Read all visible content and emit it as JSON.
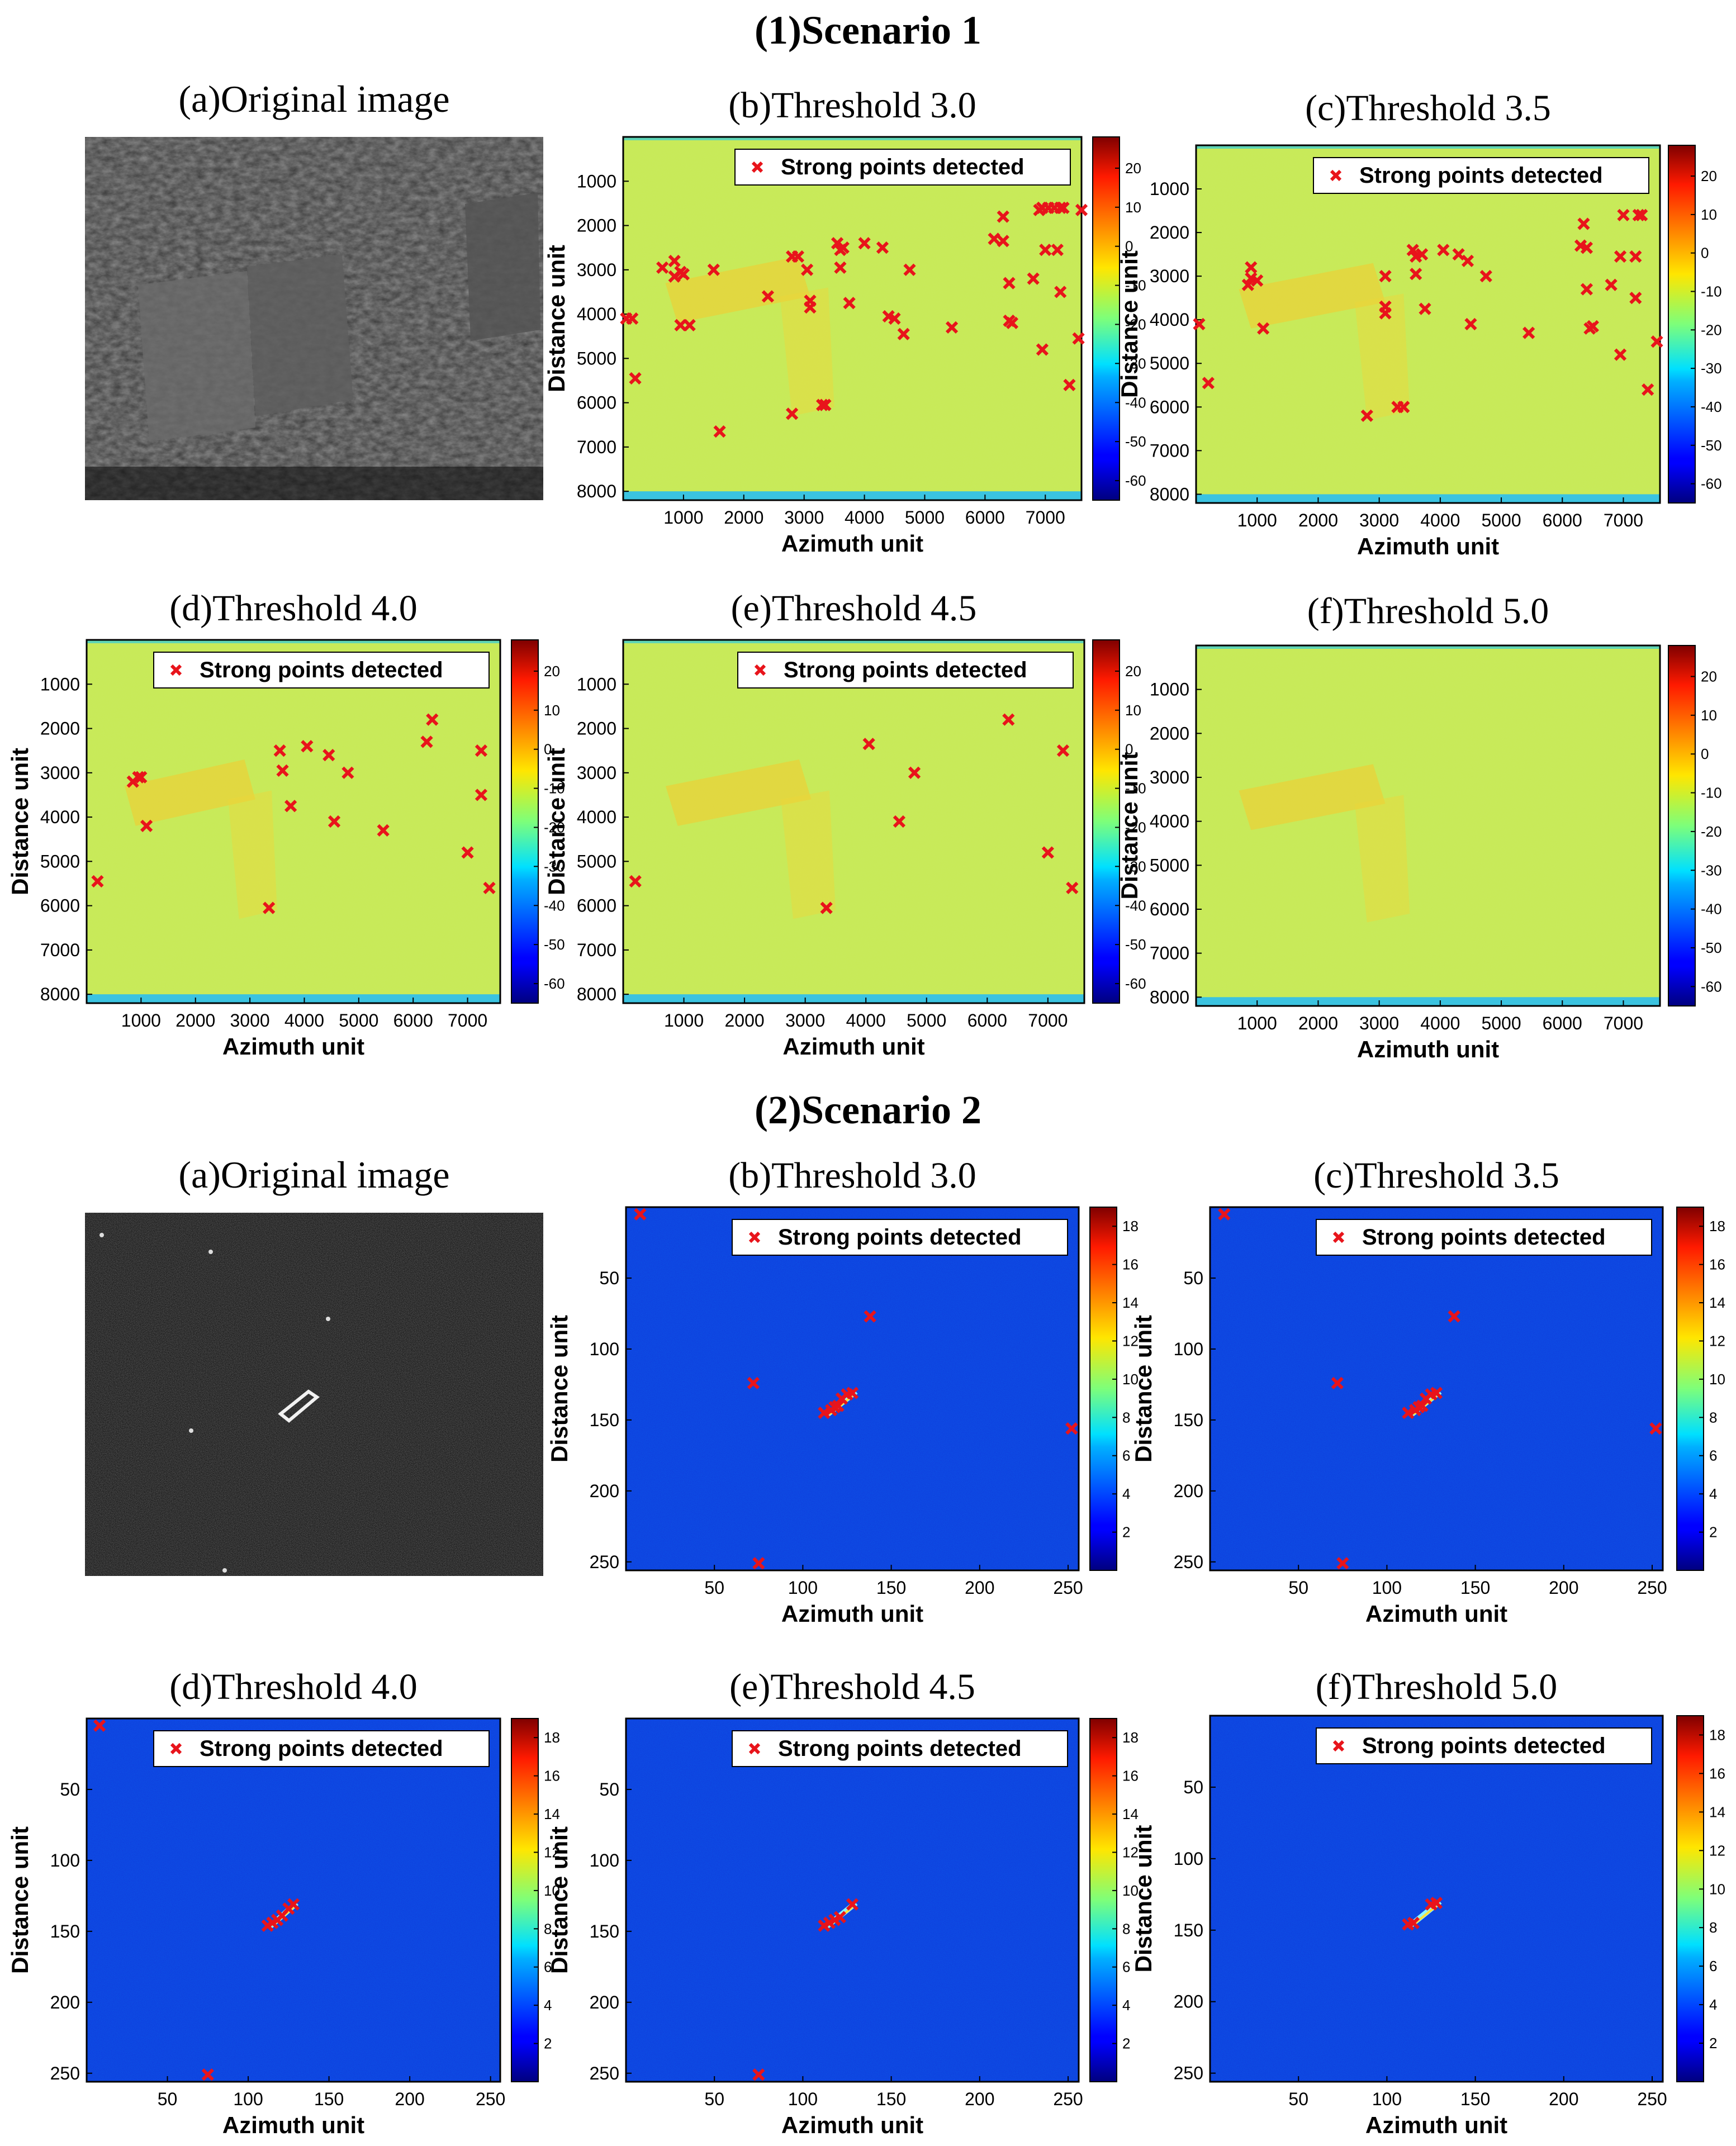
{
  "figure": {
    "scenario1_title": "(1)Scenario 1",
    "scenario2_title": "(2)Scenario 2",
    "xlabel": "Azimuth unit",
    "ylabel": "Distance unit",
    "legend_label": "Strong points detected"
  },
  "chart_data": [
    {
      "type": "heatmap-scatter",
      "scenario": 1,
      "panel": "a",
      "title": "(a)Original image",
      "image_kind": "photo",
      "description_none": ""
    },
    {
      "type": "heatmap-scatter",
      "scenario": 1,
      "panel": "b",
      "title": "(b)Threshold 3.0",
      "xlabel": "Azimuth unit",
      "ylabel": "Distance unit",
      "xlim": [
        0,
        7600
      ],
      "ylim": [
        8200,
        0
      ],
      "xticks": [
        1000,
        2000,
        3000,
        4000,
        5000,
        6000,
        7000
      ],
      "yticks": [
        1000,
        2000,
        3000,
        4000,
        5000,
        6000,
        7000,
        8000
      ],
      "colorbar": {
        "min": -65,
        "max": 28,
        "ticks": [
          20,
          10,
          0,
          -10,
          -20,
          -30,
          -40,
          -50,
          -60
        ],
        "palette": "jet"
      },
      "background": "scene1",
      "legend": "Strong points detected",
      "points": [
        [
          50,
          4100
        ],
        [
          150,
          4100
        ],
        [
          200,
          5450
        ],
        [
          650,
          2950
        ],
        [
          850,
          2800
        ],
        [
          850,
          3150
        ],
        [
          950,
          3050
        ],
        [
          1000,
          3100
        ],
        [
          950,
          4250
        ],
        [
          1100,
          4250
        ],
        [
          1500,
          3000
        ],
        [
          1600,
          6650
        ],
        [
          2400,
          3600
        ],
        [
          2800,
          2700
        ],
        [
          2900,
          2700
        ],
        [
          2800,
          6250
        ],
        [
          3050,
          3000
        ],
        [
          3100,
          3700
        ],
        [
          3100,
          3850
        ],
        [
          3300,
          6050
        ],
        [
          3350,
          6050
        ],
        [
          3550,
          2400
        ],
        [
          3600,
          2550
        ],
        [
          3650,
          2500
        ],
        [
          3600,
          2950
        ],
        [
          3750,
          3750
        ],
        [
          4000,
          2400
        ],
        [
          4300,
          2500
        ],
        [
          4400,
          4050
        ],
        [
          4500,
          4100
        ],
        [
          4650,
          4450
        ],
        [
          4750,
          3000
        ],
        [
          5450,
          4300
        ],
        [
          6150,
          2300
        ],
        [
          6300,
          2350
        ],
        [
          6300,
          1800
        ],
        [
          6400,
          3300
        ],
        [
          6400,
          4150
        ],
        [
          6450,
          4200
        ],
        [
          6800,
          3200
        ],
        [
          6900,
          1650
        ],
        [
          6950,
          1600
        ],
        [
          7000,
          2550
        ],
        [
          6950,
          4800
        ],
        [
          7050,
          1600
        ],
        [
          7150,
          1600
        ],
        [
          7200,
          2550
        ],
        [
          7250,
          1600
        ],
        [
          7250,
          3500
        ],
        [
          7300,
          1600
        ],
        [
          7400,
          5600
        ],
        [
          7550,
          4550
        ],
        [
          7600,
          1650
        ]
      ]
    },
    {
      "type": "heatmap-scatter",
      "scenario": 1,
      "panel": "c",
      "title": "(c)Threshold 3.5",
      "xlabel": "Azimuth unit",
      "ylabel": "Distance unit",
      "xlim": [
        0,
        7600
      ],
      "ylim": [
        8200,
        0
      ],
      "xticks": [
        1000,
        2000,
        3000,
        4000,
        5000,
        6000,
        7000
      ],
      "yticks": [
        1000,
        2000,
        3000,
        4000,
        5000,
        6000,
        7000,
        8000
      ],
      "colorbar": {
        "min": -65,
        "max": 28,
        "ticks": [
          20,
          10,
          0,
          -10,
          -20,
          -30,
          -40,
          -50,
          -60
        ],
        "palette": "jet"
      },
      "background": "scene1",
      "legend": "Strong points detected",
      "points": [
        [
          50,
          4100
        ],
        [
          200,
          5450
        ],
        [
          850,
          3200
        ],
        [
          900,
          2800
        ],
        [
          900,
          3050
        ],
        [
          1000,
          3100
        ],
        [
          1100,
          4200
        ],
        [
          2800,
          6200
        ],
        [
          3100,
          3000
        ],
        [
          3100,
          3700
        ],
        [
          3100,
          3850
        ],
        [
          3300,
          6000
        ],
        [
          3400,
          6000
        ],
        [
          3550,
          2400
        ],
        [
          3600,
          2550
        ],
        [
          3700,
          2500
        ],
        [
          3600,
          2950
        ],
        [
          3750,
          3750
        ],
        [
          4050,
          2400
        ],
        [
          4300,
          2500
        ],
        [
          4450,
          2650
        ],
        [
          4500,
          4100
        ],
        [
          4750,
          3000
        ],
        [
          5450,
          4300
        ],
        [
          6300,
          2300
        ],
        [
          6400,
          2350
        ],
        [
          6350,
          1800
        ],
        [
          6400,
          3300
        ],
        [
          6450,
          4200
        ],
        [
          6500,
          4150
        ],
        [
          6800,
          3200
        ],
        [
          6950,
          2550
        ],
        [
          7000,
          1600
        ],
        [
          6950,
          4800
        ],
        [
          7200,
          2550
        ],
        [
          7200,
          3500
        ],
        [
          7250,
          1600
        ],
        [
          7300,
          1600
        ],
        [
          7400,
          5600
        ],
        [
          7550,
          4500
        ]
      ]
    },
    {
      "type": "heatmap-scatter",
      "scenario": 1,
      "panel": "d",
      "title": "(d)Threshold 4.0",
      "xlabel": "Azimuth unit",
      "ylabel": "Distance unit",
      "xlim": [
        0,
        7600
      ],
      "ylim": [
        8200,
        0
      ],
      "xticks": [
        1000,
        2000,
        3000,
        4000,
        5000,
        6000,
        7000
      ],
      "yticks": [
        1000,
        2000,
        3000,
        4000,
        5000,
        6000,
        7000,
        8000
      ],
      "colorbar": {
        "min": -65,
        "max": 28,
        "ticks": [
          20,
          10,
          0,
          -10,
          -20,
          -30,
          -40,
          -50,
          -60
        ],
        "palette": "jet"
      },
      "background": "scene1",
      "legend": "Strong points detected",
      "points": [
        [
          200,
          5450
        ],
        [
          850,
          3200
        ],
        [
          950,
          3100
        ],
        [
          1000,
          3100
        ],
        [
          1100,
          4200
        ],
        [
          3350,
          6050
        ],
        [
          3550,
          2500
        ],
        [
          3600,
          2950
        ],
        [
          3750,
          3750
        ],
        [
          4050,
          2400
        ],
        [
          4450,
          2600
        ],
        [
          4550,
          4100
        ],
        [
          4800,
          3000
        ],
        [
          5450,
          4300
        ],
        [
          6250,
          2300
        ],
        [
          6350,
          1800
        ],
        [
          7000,
          4800
        ],
        [
          7250,
          2500
        ],
        [
          7250,
          3500
        ],
        [
          7400,
          5600
        ]
      ]
    },
    {
      "type": "heatmap-scatter",
      "scenario": 1,
      "panel": "e",
      "title": "(e)Threshold 4.5",
      "xlabel": "Azimuth unit",
      "ylabel": "Distance unit",
      "xlim": [
        0,
        7600
      ],
      "ylim": [
        8200,
        0
      ],
      "xticks": [
        1000,
        2000,
        3000,
        4000,
        5000,
        6000,
        7000
      ],
      "yticks": [
        1000,
        2000,
        3000,
        4000,
        5000,
        6000,
        7000,
        8000
      ],
      "colorbar": {
        "min": -65,
        "max": 28,
        "ticks": [
          20,
          10,
          0,
          -10,
          -20,
          -30,
          -40,
          -50,
          -60
        ],
        "palette": "jet"
      },
      "background": "scene1",
      "legend": "Strong points detected",
      "points": [
        [
          200,
          5450
        ],
        [
          3350,
          6050
        ],
        [
          4050,
          2350
        ],
        [
          4550,
          4100
        ],
        [
          4800,
          3000
        ],
        [
          6350,
          1800
        ],
        [
          7000,
          4800
        ],
        [
          7250,
          2500
        ],
        [
          7400,
          5600
        ]
      ]
    },
    {
      "type": "heatmap-scatter",
      "scenario": 1,
      "panel": "f",
      "title": "(f)Threshold 5.0",
      "xlabel": "Azimuth unit",
      "ylabel": "Distance unit",
      "xlim": [
        0,
        7600
      ],
      "ylim": [
        8200,
        0
      ],
      "xticks": [
        1000,
        2000,
        3000,
        4000,
        5000,
        6000,
        7000
      ],
      "yticks": [
        1000,
        2000,
        3000,
        4000,
        5000,
        6000,
        7000,
        8000
      ],
      "colorbar": {
        "min": -65,
        "max": 28,
        "ticks": [
          20,
          10,
          0,
          -10,
          -20,
          -30,
          -40,
          -50,
          -60
        ],
        "palette": "jet"
      },
      "background": "scene1",
      "legend": "",
      "points": []
    },
    {
      "type": "heatmap-scatter",
      "scenario": 2,
      "panel": "a",
      "title": "(a)Original image",
      "image_kind": "photo"
    },
    {
      "type": "heatmap-scatter",
      "scenario": 2,
      "panel": "b",
      "title": "(b)Threshold 3.0",
      "xlabel": "Azimuth unit",
      "ylabel": "Distance unit",
      "xlim": [
        0,
        256
      ],
      "ylim": [
        256,
        0
      ],
      "xticks": [
        50,
        100,
        150,
        200,
        250
      ],
      "yticks": [
        50,
        100,
        150,
        200,
        250
      ],
      "colorbar": {
        "min": 0,
        "max": 19,
        "ticks": [
          18,
          16,
          14,
          12,
          10,
          8,
          6,
          4,
          2
        ],
        "palette": "jet"
      },
      "background": "scene2",
      "legend": "Strong points detected",
      "points": [
        [
          8,
          5
        ],
        [
          72,
          124
        ],
        [
          112,
          145
        ],
        [
          116,
          143
        ],
        [
          118,
          141
        ],
        [
          120,
          140
        ],
        [
          122,
          135
        ],
        [
          125,
          132
        ],
        [
          128,
          131
        ],
        [
          138,
          77
        ],
        [
          252,
          156
        ],
        [
          75,
          251
        ]
      ]
    },
    {
      "type": "heatmap-scatter",
      "scenario": 2,
      "panel": "c",
      "title": "(c)Threshold 3.5",
      "xlabel": "Azimuth unit",
      "ylabel": "Distance unit",
      "xlim": [
        0,
        256
      ],
      "ylim": [
        256,
        0
      ],
      "xticks": [
        50,
        100,
        150,
        200,
        250
      ],
      "yticks": [
        50,
        100,
        150,
        200,
        250
      ],
      "colorbar": {
        "min": 0,
        "max": 19,
        "ticks": [
          18,
          16,
          14,
          12,
          10,
          8,
          6,
          4,
          2
        ],
        "palette": "jet"
      },
      "background": "scene2",
      "legend": "Strong points detected",
      "points": [
        [
          8,
          5
        ],
        [
          72,
          124
        ],
        [
          112,
          145
        ],
        [
          116,
          143
        ],
        [
          118,
          141
        ],
        [
          120,
          140
        ],
        [
          122,
          135
        ],
        [
          125,
          132
        ],
        [
          128,
          131
        ],
        [
          138,
          77
        ],
        [
          252,
          156
        ],
        [
          75,
          251
        ]
      ]
    },
    {
      "type": "heatmap-scatter",
      "scenario": 2,
      "panel": "d",
      "title": "(d)Threshold 4.0",
      "xlabel": "Azimuth unit",
      "ylabel": "Distance unit",
      "xlim": [
        0,
        256
      ],
      "ylim": [
        256,
        0
      ],
      "xticks": [
        50,
        100,
        150,
        200,
        250
      ],
      "yticks": [
        50,
        100,
        150,
        200,
        250
      ],
      "colorbar": {
        "min": 0,
        "max": 19,
        "ticks": [
          18,
          16,
          14,
          12,
          10,
          8,
          6,
          4,
          2
        ],
        "palette": "jet"
      },
      "background": "scene2",
      "legend": "Strong points detected",
      "points": [
        [
          8,
          5
        ],
        [
          112,
          146
        ],
        [
          115,
          144
        ],
        [
          118,
          142
        ],
        [
          121,
          139
        ],
        [
          125,
          134
        ],
        [
          128,
          131
        ],
        [
          75,
          251
        ]
      ]
    },
    {
      "type": "heatmap-scatter",
      "scenario": 2,
      "panel": "e",
      "title": "(e)Threshold 4.5",
      "xlabel": "Azimuth unit",
      "ylabel": "Distance unit",
      "xlim": [
        0,
        256
      ],
      "ylim": [
        256,
        0
      ],
      "xticks": [
        50,
        100,
        150,
        200,
        250
      ],
      "yticks": [
        50,
        100,
        150,
        200,
        250
      ],
      "colorbar": {
        "min": 0,
        "max": 19,
        "ticks": [
          18,
          16,
          14,
          12,
          10,
          8,
          6,
          4,
          2
        ],
        "palette": "jet"
      },
      "background": "scene2",
      "legend": "Strong points detected",
      "points": [
        [
          112,
          146
        ],
        [
          115,
          144
        ],
        [
          118,
          142
        ],
        [
          121,
          140
        ],
        [
          128,
          131
        ],
        [
          75,
          251
        ]
      ]
    },
    {
      "type": "heatmap-scatter",
      "scenario": 2,
      "panel": "f",
      "title": "(f)Threshold 5.0",
      "xlabel": "Azimuth unit",
      "ylabel": "Distance unit",
      "xlim": [
        0,
        256
      ],
      "ylim": [
        256,
        0
      ],
      "xticks": [
        50,
        100,
        150,
        200,
        250
      ],
      "yticks": [
        50,
        100,
        150,
        200,
        250
      ],
      "colorbar": {
        "min": 0,
        "max": 19,
        "ticks": [
          18,
          16,
          14,
          12,
          10,
          8,
          6,
          4,
          2
        ],
        "palette": "jet"
      },
      "background": "scene2",
      "legend": "Strong points detected",
      "points": [
        [
          112,
          146
        ],
        [
          115,
          145
        ],
        [
          125,
          132
        ],
        [
          128,
          131
        ]
      ]
    }
  ]
}
